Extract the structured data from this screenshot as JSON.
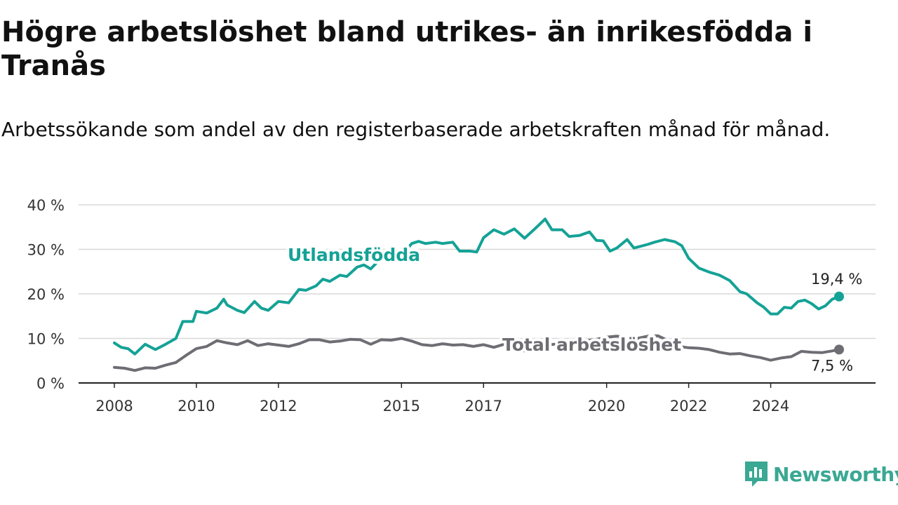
{
  "header": {
    "title": "Högre arbetslöshet bland utrikes- än inrikesfödda i Tranås",
    "subtitle": "Arbetssökande som andel av den registerbaserade arbetskraften månad för månad."
  },
  "brand": {
    "name": "Newsworthy",
    "icon": "newsworthy-logo-icon",
    "color": "#3aa893"
  },
  "chart_data": {
    "type": "line",
    "title": "Högre arbetslöshet bland utrikes- än inrikesfödda i Tranås",
    "subtitle": "Arbetssökande som andel av den registerbaserade arbetskraften månad för månad.",
    "y_ticks": [
      {
        "value": 0,
        "label": "0 %"
      },
      {
        "value": 10,
        "label": "10 %"
      },
      {
        "value": 20,
        "label": "20 %"
      },
      {
        "value": 30,
        "label": "30 %"
      },
      {
        "value": 40,
        "label": "40 %"
      }
    ],
    "ylim": [
      0,
      40
    ],
    "xlim": [
      "2008-01",
      "2025-09"
    ],
    "x_ticks": [
      {
        "value": "2008-01",
        "label": "2008"
      },
      {
        "value": "2010-01",
        "label": "2010"
      },
      {
        "value": "2012-01",
        "label": "2012"
      },
      {
        "value": "2015-01",
        "label": "2015"
      },
      {
        "value": "2017-01",
        "label": "2017"
      },
      {
        "value": "2020-01",
        "label": "2020"
      },
      {
        "value": "2022-01",
        "label": "2022"
      },
      {
        "value": "2024-01",
        "label": "2024"
      }
    ],
    "grid": true,
    "legend": "none",
    "series": [
      {
        "name": "Utlandsfödda",
        "color": "#14a296",
        "end_label": "19,4 %",
        "points": [
          [
            "2008-01",
            9.0
          ],
          [
            "2008-03",
            8.0
          ],
          [
            "2008-05",
            7.7
          ],
          [
            "2008-07",
            6.5
          ],
          [
            "2008-10",
            8.7
          ],
          [
            "2009-01",
            7.5
          ],
          [
            "2009-04",
            8.7
          ],
          [
            "2009-07",
            10.0
          ],
          [
            "2009-09",
            13.8
          ],
          [
            "2009-12",
            13.8
          ],
          [
            "2010-01",
            16.1
          ],
          [
            "2010-04",
            15.7
          ],
          [
            "2010-07",
            16.8
          ],
          [
            "2010-09",
            18.8
          ],
          [
            "2010-10",
            17.5
          ],
          [
            "2011-01",
            16.3
          ],
          [
            "2011-03",
            15.8
          ],
          [
            "2011-06",
            18.3
          ],
          [
            "2011-08",
            16.8
          ],
          [
            "2011-10",
            16.3
          ],
          [
            "2012-01",
            18.3
          ],
          [
            "2012-04",
            18.0
          ],
          [
            "2012-07",
            21.0
          ],
          [
            "2012-09",
            20.8
          ],
          [
            "2012-12",
            21.8
          ],
          [
            "2013-02",
            23.3
          ],
          [
            "2013-04",
            22.8
          ],
          [
            "2013-07",
            24.2
          ],
          [
            "2013-09",
            23.9
          ],
          [
            "2013-12",
            26.0
          ],
          [
            "2014-02",
            26.5
          ],
          [
            "2014-04",
            25.6
          ],
          [
            "2014-07",
            28.0
          ],
          [
            "2014-10",
            28.6
          ],
          [
            "2015-01",
            28.6
          ],
          [
            "2015-04",
            31.3
          ],
          [
            "2015-06",
            31.8
          ],
          [
            "2015-08",
            31.3
          ],
          [
            "2015-11",
            31.6
          ],
          [
            "2016-01",
            31.3
          ],
          [
            "2016-04",
            31.6
          ],
          [
            "2016-06",
            29.6
          ],
          [
            "2016-09",
            29.6
          ],
          [
            "2016-11",
            29.4
          ],
          [
            "2017-01",
            32.6
          ],
          [
            "2017-04",
            34.4
          ],
          [
            "2017-07",
            33.4
          ],
          [
            "2017-10",
            34.6
          ],
          [
            "2018-01",
            32.5
          ],
          [
            "2018-04",
            34.6
          ],
          [
            "2018-07",
            36.8
          ],
          [
            "2018-09",
            34.4
          ],
          [
            "2018-12",
            34.4
          ],
          [
            "2019-02",
            32.9
          ],
          [
            "2019-05",
            33.1
          ],
          [
            "2019-08",
            33.9
          ],
          [
            "2019-10",
            32.0
          ],
          [
            "2019-12",
            31.9
          ],
          [
            "2020-02",
            29.6
          ],
          [
            "2020-04",
            30.3
          ],
          [
            "2020-07",
            32.2
          ],
          [
            "2020-09",
            30.3
          ],
          [
            "2020-11",
            30.7
          ],
          [
            "2021-01",
            31.1
          ],
          [
            "2021-03",
            31.6
          ],
          [
            "2021-06",
            32.2
          ],
          [
            "2021-09",
            31.7
          ],
          [
            "2021-11",
            30.8
          ],
          [
            "2022-01",
            28.0
          ],
          [
            "2022-04",
            25.8
          ],
          [
            "2022-07",
            24.9
          ],
          [
            "2022-10",
            24.2
          ],
          [
            "2023-01",
            23.0
          ],
          [
            "2023-04",
            20.5
          ],
          [
            "2023-06",
            20.0
          ],
          [
            "2023-09",
            18.0
          ],
          [
            "2023-11",
            17.0
          ],
          [
            "2024-01",
            15.5
          ],
          [
            "2024-03",
            15.5
          ],
          [
            "2024-05",
            17.0
          ],
          [
            "2024-07",
            16.8
          ],
          [
            "2024-09",
            18.3
          ],
          [
            "2024-11",
            18.6
          ],
          [
            "2025-01",
            17.8
          ],
          [
            "2025-03",
            16.6
          ],
          [
            "2025-05",
            17.3
          ],
          [
            "2025-07",
            18.8
          ],
          [
            "2025-09",
            19.4
          ]
        ]
      },
      {
        "name": "Total arbetslöshet",
        "color": "#6e6d73",
        "end_label": "7,5 %",
        "points": [
          [
            "2008-01",
            3.5
          ],
          [
            "2008-04",
            3.3
          ],
          [
            "2008-07",
            2.8
          ],
          [
            "2008-10",
            3.4
          ],
          [
            "2009-01",
            3.3
          ],
          [
            "2009-04",
            4.0
          ],
          [
            "2009-07",
            4.6
          ],
          [
            "2009-10",
            6.2
          ],
          [
            "2010-01",
            7.7
          ],
          [
            "2010-04",
            8.2
          ],
          [
            "2010-07",
            9.5
          ],
          [
            "2010-10",
            9.0
          ],
          [
            "2011-01",
            8.6
          ],
          [
            "2011-04",
            9.5
          ],
          [
            "2011-07",
            8.4
          ],
          [
            "2011-10",
            8.8
          ],
          [
            "2012-01",
            8.5
          ],
          [
            "2012-04",
            8.2
          ],
          [
            "2012-07",
            8.8
          ],
          [
            "2012-10",
            9.7
          ],
          [
            "2013-01",
            9.7
          ],
          [
            "2013-04",
            9.2
          ],
          [
            "2013-07",
            9.4
          ],
          [
            "2013-10",
            9.8
          ],
          [
            "2014-01",
            9.7
          ],
          [
            "2014-04",
            8.7
          ],
          [
            "2014-07",
            9.7
          ],
          [
            "2014-10",
            9.6
          ],
          [
            "2015-01",
            10.0
          ],
          [
            "2015-04",
            9.4
          ],
          [
            "2015-07",
            8.6
          ],
          [
            "2015-10",
            8.4
          ],
          [
            "2016-01",
            8.8
          ],
          [
            "2016-04",
            8.5
          ],
          [
            "2016-07",
            8.6
          ],
          [
            "2016-10",
            8.2
          ],
          [
            "2017-01",
            8.6
          ],
          [
            "2017-04",
            8.0
          ],
          [
            "2017-07",
            8.7
          ],
          [
            "2017-10",
            8.0
          ],
          [
            "2018-01",
            7.2
          ],
          [
            "2018-04",
            8.0
          ],
          [
            "2018-07",
            8.5
          ],
          [
            "2018-10",
            8.7
          ],
          [
            "2019-01",
            8.9
          ],
          [
            "2019-04",
            9.4
          ],
          [
            "2019-07",
            9.5
          ],
          [
            "2019-10",
            9.8
          ],
          [
            "2020-01",
            10.3
          ],
          [
            "2020-04",
            10.5
          ],
          [
            "2020-07",
            10.2
          ],
          [
            "2020-10",
            10.0
          ],
          [
            "2021-01",
            10.5
          ],
          [
            "2021-04",
            10.6
          ],
          [
            "2021-07",
            9.5
          ],
          [
            "2021-10",
            8.2
          ],
          [
            "2022-01",
            7.9
          ],
          [
            "2022-04",
            7.8
          ],
          [
            "2022-07",
            7.5
          ],
          [
            "2022-10",
            6.9
          ],
          [
            "2023-01",
            6.5
          ],
          [
            "2023-04",
            6.6
          ],
          [
            "2023-07",
            6.1
          ],
          [
            "2023-10",
            5.7
          ],
          [
            "2024-01",
            5.1
          ],
          [
            "2024-04",
            5.6
          ],
          [
            "2024-07",
            5.9
          ],
          [
            "2024-10",
            7.1
          ],
          [
            "2025-01",
            6.9
          ],
          [
            "2025-04",
            6.8
          ],
          [
            "2025-07",
            7.2
          ],
          [
            "2025-09",
            7.5
          ]
        ]
      }
    ]
  }
}
